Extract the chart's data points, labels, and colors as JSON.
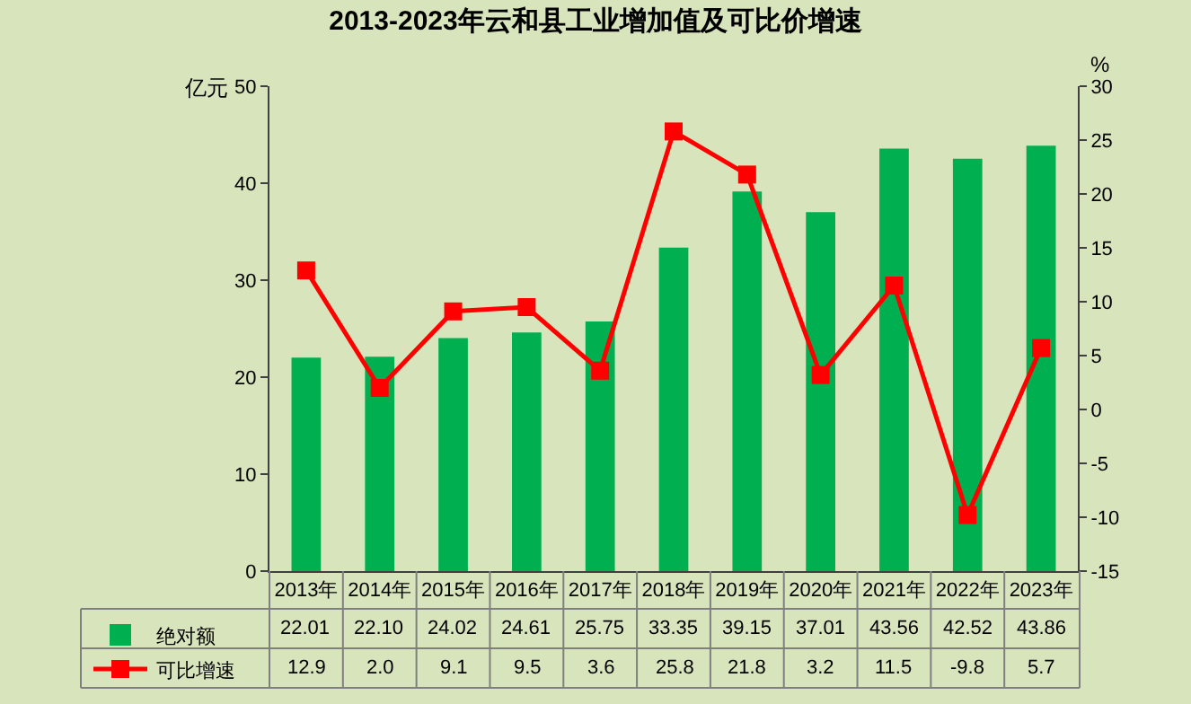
{
  "chart_data": {
    "type": "bar",
    "title": "2013-2023年云和县工业增加值及可比价增速",
    "ylabel": "亿元",
    "y2label": "%",
    "categories": [
      "2013年",
      "2014年",
      "2015年",
      "2016年",
      "2017年",
      "2018年",
      "2019年",
      "2020年",
      "2021年",
      "2022年",
      "2023年"
    ],
    "series": [
      {
        "name": "绝对额",
        "color": "#00b050",
        "values": [
          22.01,
          22.1,
          24.02,
          24.61,
          25.75,
          33.35,
          39.15,
          37.01,
          43.56,
          42.52,
          43.86
        ],
        "value_labels": [
          "22.01",
          "22.10",
          "24.02",
          "24.61",
          "25.75",
          "33.35",
          "39.15",
          "37.01",
          "43.56",
          "42.52",
          "43.86"
        ]
      },
      {
        "name": "可比增速",
        "type": "line",
        "axis": "y2",
        "color": "#ff0000",
        "marker": "square",
        "line_style": "solid",
        "values": [
          12.9,
          2.0,
          9.1,
          9.5,
          3.6,
          25.8,
          21.8,
          3.2,
          11.5,
          -9.8,
          5.7
        ],
        "value_labels": [
          "12.9",
          "2.0",
          "9.1",
          "9.5",
          "3.6",
          "25.8",
          "21.8",
          "3.2",
          "11.5",
          "-9.8",
          "5.7"
        ]
      }
    ],
    "ylim": [
      0,
      50
    ],
    "yticks": [
      0,
      10,
      20,
      30,
      40,
      50
    ],
    "y2lim": [
      -15,
      30
    ],
    "y2ticks": [
      -15,
      -10,
      -5,
      0,
      5,
      10,
      15,
      20,
      25,
      30
    ],
    "grid": false,
    "legend": "bottom left"
  }
}
